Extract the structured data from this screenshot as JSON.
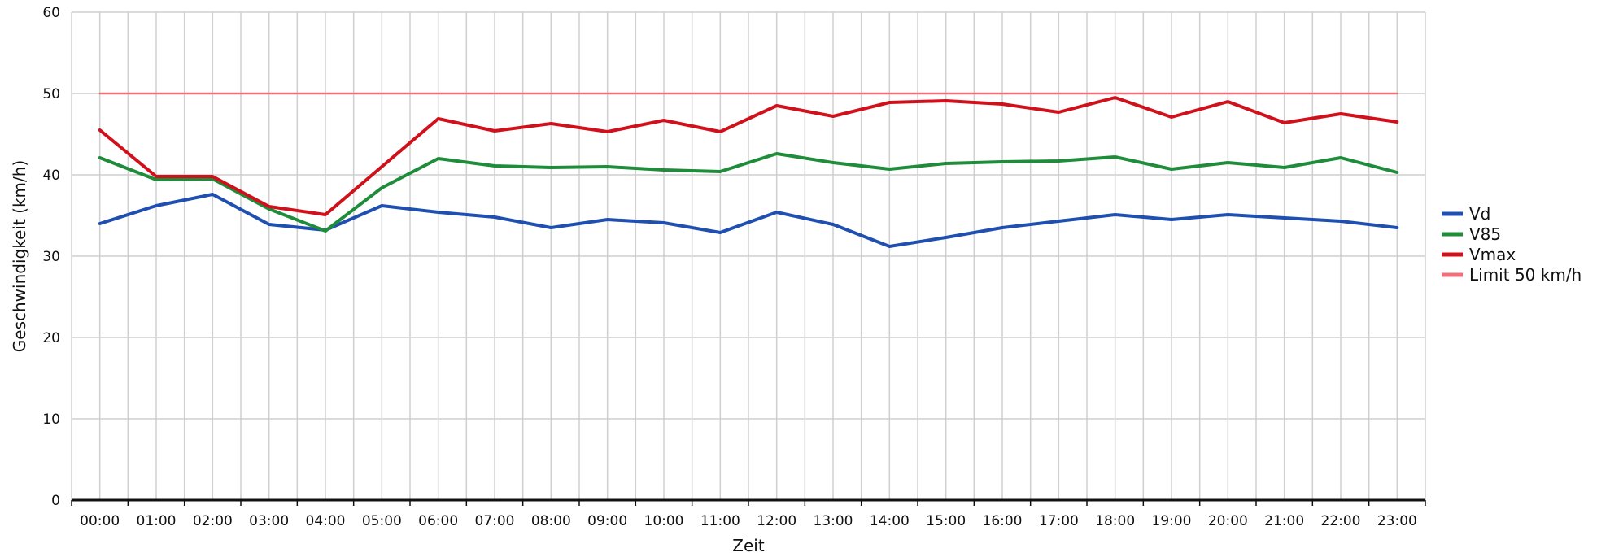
{
  "chart_data": {
    "type": "line",
    "xlabel": "Zeit",
    "ylabel": "Geschwindigkeit (km/h)",
    "ylim": [
      0,
      60
    ],
    "yticks": [
      "0",
      "10",
      "20",
      "30",
      "40",
      "50",
      "60"
    ],
    "categories": [
      "00:00",
      "01:00",
      "02:00",
      "03:00",
      "04:00",
      "05:00",
      "06:00",
      "07:00",
      "08:00",
      "09:00",
      "10:00",
      "11:00",
      "12:00",
      "13:00",
      "14:00",
      "15:00",
      "16:00",
      "17:00",
      "18:00",
      "19:00",
      "20:00",
      "21:00",
      "22:00",
      "23:00"
    ],
    "grid": true,
    "legend_position": "right",
    "series": [
      {
        "name": "Vd",
        "color": "#1f4fb0",
        "values": [
          34.0,
          36.2,
          37.6,
          33.9,
          33.2,
          36.2,
          35.4,
          34.8,
          33.5,
          34.5,
          34.1,
          32.9,
          35.4,
          33.9,
          31.2,
          32.3,
          33.5,
          34.3,
          35.1,
          34.5,
          35.1,
          34.7,
          34.3,
          33.5
        ]
      },
      {
        "name": "V85",
        "color": "#1e8c3a",
        "values": [
          42.1,
          39.4,
          39.5,
          35.8,
          33.1,
          38.4,
          42.0,
          41.1,
          40.9,
          41.0,
          40.6,
          40.4,
          42.6,
          41.5,
          40.7,
          41.4,
          41.6,
          41.7,
          42.2,
          40.7,
          41.5,
          40.9,
          42.1,
          40.3
        ]
      },
      {
        "name": "Vmax",
        "color": "#d0111b",
        "values": [
          45.5,
          39.8,
          39.8,
          36.1,
          35.1,
          41.0,
          46.9,
          45.4,
          46.3,
          45.3,
          46.7,
          45.3,
          48.5,
          47.2,
          48.9,
          49.1,
          48.7,
          47.7,
          49.5,
          47.1,
          49.0,
          46.4,
          47.5,
          46.5
        ]
      },
      {
        "name": "Limit 50 km/h",
        "color": "#f0707a",
        "values": [
          50,
          50,
          50,
          50,
          50,
          50,
          50,
          50,
          50,
          50,
          50,
          50,
          50,
          50,
          50,
          50,
          50,
          50,
          50,
          50,
          50,
          50,
          50,
          50
        ]
      }
    ]
  }
}
